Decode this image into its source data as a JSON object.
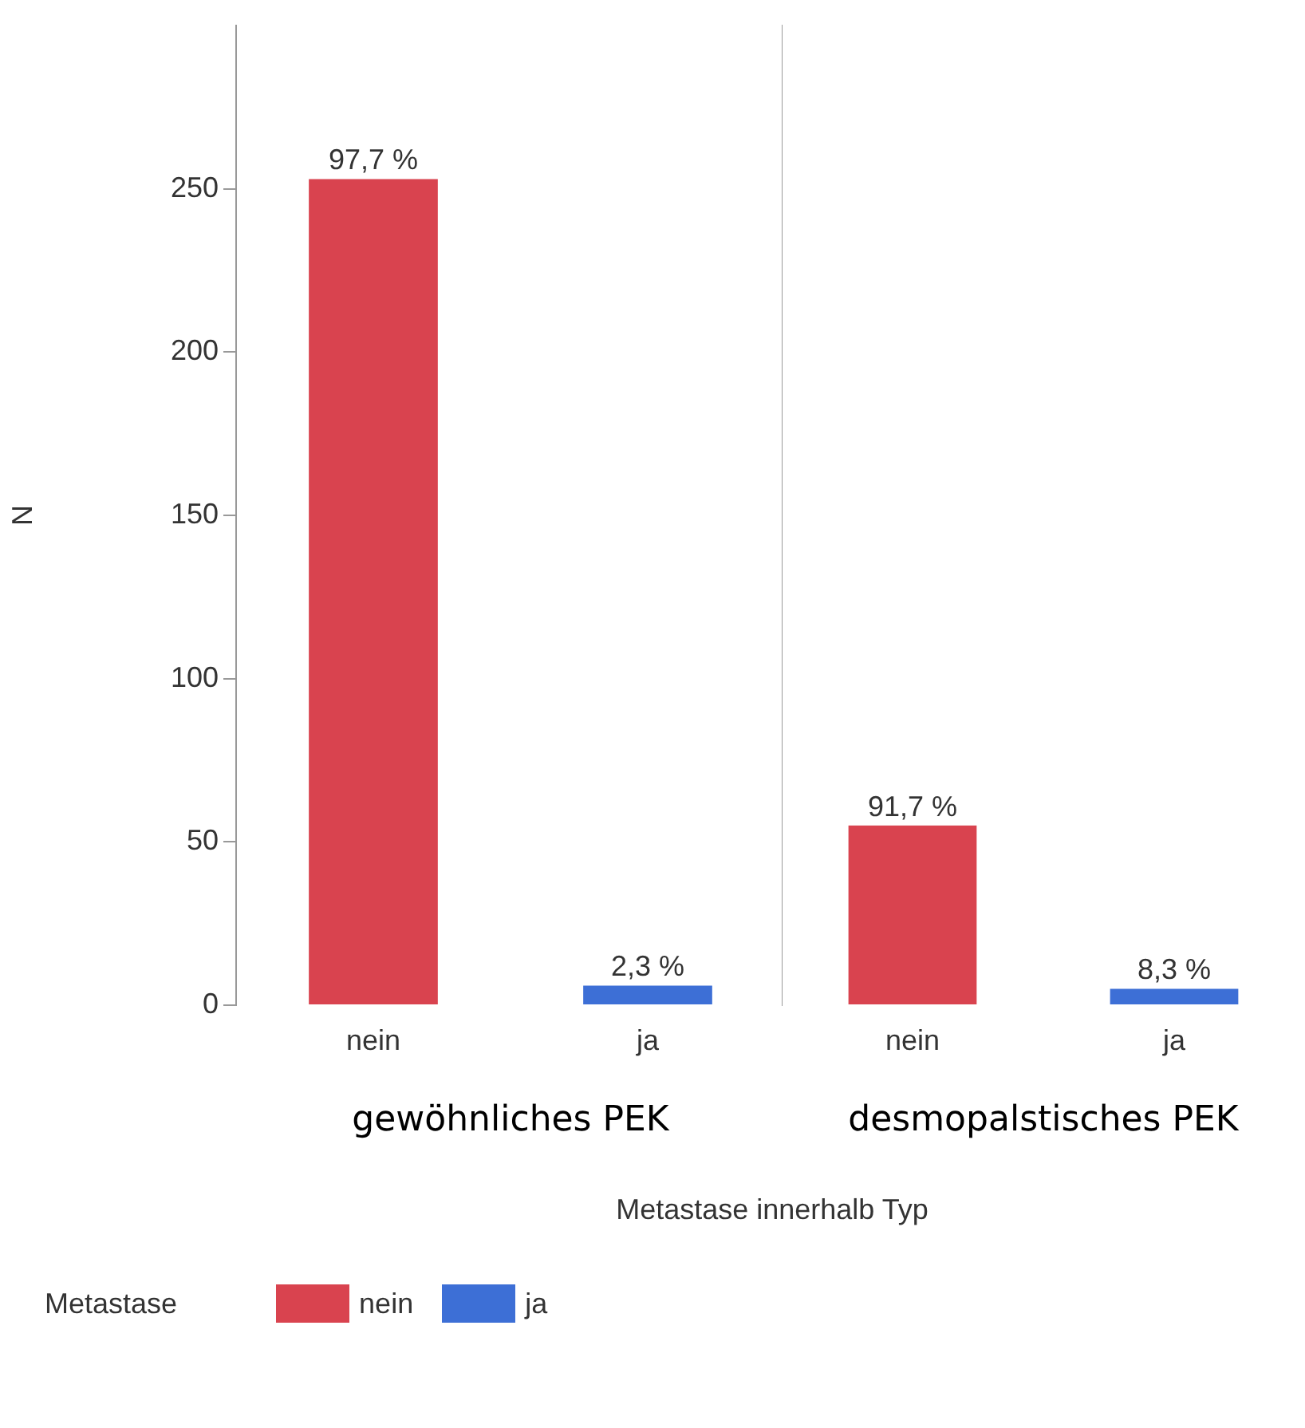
{
  "chart_data": [
    {
      "type": "bar",
      "stacked": true,
      "categories": [
        "nein",
        "ja"
      ],
      "xlabel": "gewöhnliches PEK",
      "ylabel": "N",
      "ylim": [
        0,
        300
      ],
      "yticks": [
        0,
        50,
        100,
        150,
        200,
        250
      ],
      "grid": false,
      "legend": "bottom left",
      "legend_title": "Metastase",
      "annotations": [
        {
          "text": "97,7 %",
          "x": "nein",
          "y": 253
        },
        {
          "text": "2,3 %",
          "x": "ja",
          "y": 6
        }
      ],
      "series": [
        {
          "name": "nein",
          "color": "#d9434f",
          "values": [
            253,
            null
          ]
        },
        {
          "name": "ja",
          "color": "#3d6fd6",
          "values": [
            null,
            6
          ]
        }
      ]
    },
    {
      "type": "bar",
      "stacked": true,
      "categories": [
        "nein",
        "ja"
      ],
      "xlabel": "desmopalstisches PEK",
      "ylim": [
        0,
        300
      ],
      "yticks": [
        0,
        50,
        100,
        150,
        200,
        250
      ],
      "grid": false,
      "tick_labels": "x",
      "annotations": [
        {
          "text": "91,7 %",
          "x": "nein",
          "y": 55
        },
        {
          "text": "8,3 %",
          "x": "ja",
          "y": 5
        },
        "Metastase innerhalb Typ"
      ],
      "series": [
        {
          "color": "#d9434f",
          "values": [
            55,
            null
          ]
        },
        {
          "color": "#3d6fd6",
          "values": [
            null,
            5
          ]
        }
      ]
    }
  ]
}
